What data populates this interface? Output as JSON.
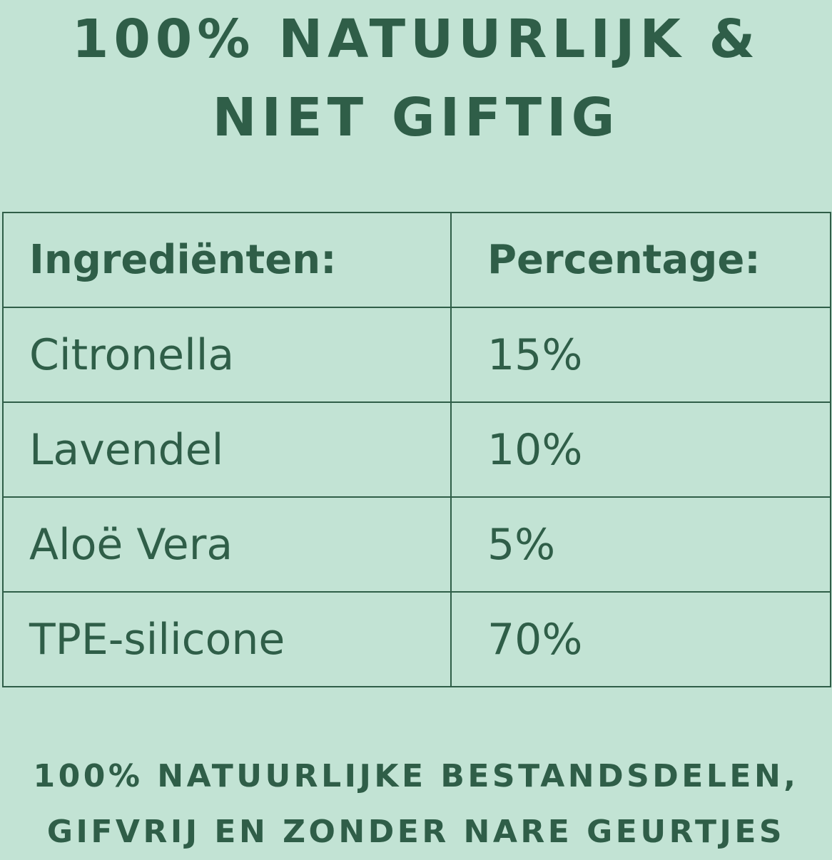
{
  "title": {
    "line1": "100% NATUURLIJK &",
    "line2": "NIET GIFTIG"
  },
  "table": {
    "headers": [
      "Ingrediënten:",
      "Percentage:"
    ],
    "rows": [
      {
        "ingredient": "Citronella",
        "percentage": "15%"
      },
      {
        "ingredient": "Lavendel",
        "percentage": "10%"
      },
      {
        "ingredient": "Aloë Vera",
        "percentage": "5%"
      },
      {
        "ingredient": "TPE-silicone",
        "percentage": "70%"
      }
    ]
  },
  "footer": {
    "line1": "100% NATUURLIJKE BESTANDSDELEN,",
    "line2": "GIFVRIJ EN ZONDER NARE GEURTJES"
  },
  "colors": {
    "background": "#c2e3d4",
    "text": "#2f5e48"
  }
}
